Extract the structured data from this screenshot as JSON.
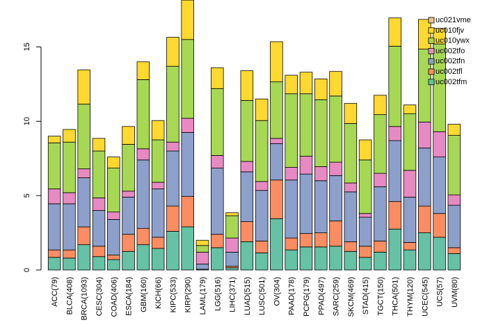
{
  "chart_data": {
    "type": "bar",
    "stacked": true,
    "title": "",
    "xlabel": "",
    "ylabel": "",
    "ylim": [
      0,
      17.5
    ],
    "yticks": [
      0,
      5,
      10,
      15
    ],
    "grid": false,
    "legend_position": "top-right",
    "categories": [
      "ACC(79)",
      "BLCA(408)",
      "BRCA(1093)",
      "CESC(304)",
      "COAD(406)",
      "ESCA(184)",
      "GBM(160)",
      "KICH(66)",
      "KIPC(533)",
      "KIRP(290)",
      "LAML(179)",
      "LGG(516)",
      "LIHC(371)",
      "LUAD(515)",
      "LUSC(501)",
      "OV(304)",
      "PAAD(178)",
      "PCPG(179)",
      "PPAD(497)",
      "SARC(259)",
      "SKCM(469)",
      "STAD(415)",
      "TGCT(150)",
      "THCA(501)",
      "THYM(120)",
      "UCEC(545)",
      "UCS(57)",
      "UVM(80)"
    ],
    "series": [
      {
        "name": "uc002tfm",
        "color": "#66c2a5",
        "values": [
          0.85,
          0.8,
          1.7,
          0.9,
          0.7,
          1.25,
          1.7,
          1.45,
          2.6,
          2.9,
          0.05,
          1.5,
          0.15,
          1.9,
          1.15,
          3.45,
          1.35,
          1.55,
          1.55,
          1.6,
          1.25,
          0.85,
          1.2,
          2.75,
          1.35,
          2.5,
          2.2,
          1.1
        ]
      },
      {
        "name": "uc002tfl",
        "color": "#fc8d62",
        "values": [
          0.5,
          0.55,
          1.2,
          0.7,
          0.3,
          1.15,
          1.1,
          0.75,
          1.7,
          2.05,
          0.0,
          0.9,
          0.1,
          1.35,
          0.8,
          2.6,
          0.8,
          0.9,
          0.95,
          1.7,
          0.65,
          0.75,
          0.75,
          1.85,
          0.5,
          1.8,
          1.6,
          0.4
        ]
      },
      {
        "name": "uc002tfn",
        "color": "#8da0cb",
        "values": [
          3.1,
          3.1,
          3.3,
          2.4,
          2.4,
          2.5,
          4.6,
          3.25,
          3.7,
          4.3,
          0.35,
          4.45,
          0.95,
          3.35,
          3.4,
          2.45,
          3.9,
          4.0,
          3.5,
          3.05,
          3.35,
          1.95,
          3.65,
          4.1,
          3.05,
          3.9,
          3.8,
          2.85
        ]
      },
      {
        "name": "uc002tfo",
        "color": "#e78ac3",
        "values": [
          1.0,
          0.75,
          0.6,
          0.85,
          0.5,
          0.4,
          0.75,
          0.45,
          0.6,
          0.95,
          0.8,
          0.85,
          0.95,
          0.7,
          0.6,
          0.35,
          0.85,
          1.2,
          0.95,
          0.9,
          0.6,
          0.25,
          0.9,
          0.95,
          1.8,
          1.75,
          1.7,
          0.7
        ]
      },
      {
        "name": "uc010ywx",
        "color": "#a6d854",
        "values": [
          3.1,
          3.4,
          4.35,
          3.15,
          2.95,
          3.15,
          4.65,
          2.85,
          5.1,
          5.3,
          0.45,
          4.5,
          1.5,
          4.1,
          4.1,
          3.8,
          4.95,
          4.2,
          4.5,
          4.45,
          4.0,
          3.6,
          3.95,
          5.4,
          3.8,
          4.9,
          5.9,
          4.0
        ]
      },
      {
        "name": "uc010fjv",
        "color": "#ffd92f",
        "values": [
          0.45,
          0.85,
          2.3,
          0.85,
          0.75,
          1.2,
          1.2,
          1.3,
          1.95,
          2.65,
          0.35,
          1.4,
          0.2,
          2.0,
          1.45,
          2.7,
          1.25,
          1.45,
          1.4,
          1.65,
          1.35,
          1.35,
          1.3,
          1.9,
          0.6,
          2.0,
          1.05,
          0.75
        ]
      },
      {
        "name": "uc021vme",
        "color": "#e5c494",
        "values": [
          0,
          0,
          0,
          0,
          0,
          0,
          0,
          0,
          0,
          0,
          0,
          0,
          0,
          0,
          0,
          0,
          0,
          0,
          0,
          0,
          0,
          0,
          0,
          0,
          0,
          0,
          0,
          0
        ]
      }
    ],
    "legend_order": [
      "uc021vme",
      "uc010fjv",
      "uc010ywx",
      "uc002tfo",
      "uc002tfn",
      "uc002tfl",
      "uc002tfm"
    ]
  }
}
